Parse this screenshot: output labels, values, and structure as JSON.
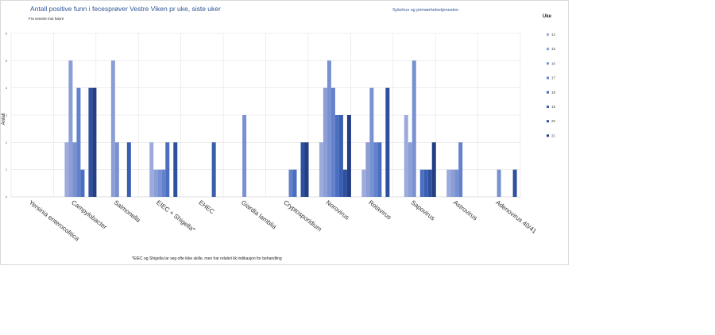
{
  "title": "Antall positive funn i fecesprøver Vestre Viken pr uke, siste uker",
  "subtitle": "Fra venstre mot høyre",
  "org": "Sykehus og primærhelsetjenesten",
  "legend_title": "Uke",
  "footnote": "*EIEC og Shigella lar seg ofte ikke skille, men har relativt lik indikasjon for behandling",
  "colors": [
    "#9dabdc",
    "#8b9ed6",
    "#7891d2",
    "#6482cc",
    "#4a6fc0",
    "#3a5fb0",
    "#2f509e",
    "#243e84"
  ],
  "chart_data": {
    "type": "bar",
    "ylabel": "Antall",
    "ylim": [
      0,
      6
    ],
    "yticks": [
      0,
      1,
      2,
      3,
      4,
      5,
      6
    ],
    "grid": true,
    "legend_placement": "right",
    "categories": [
      "Yersinia enterocolitica",
      "Campylobacter",
      "Salmonella",
      "EIEC + Shigella*",
      "EHEC",
      "Giardia lamblia",
      "Cryptosporidium",
      "Norovirus",
      "Rotavirus",
      "Sapovirus",
      "Astrovirus",
      "Adenovirus 40/41"
    ],
    "series": [
      {
        "name": "14",
        "values": [
          0,
          2,
          0,
          2,
          0,
          0,
          0,
          2,
          1,
          3,
          1,
          0
        ]
      },
      {
        "name": "15",
        "values": [
          0,
          5,
          5,
          1,
          0,
          0,
          0,
          4,
          2,
          2,
          1,
          0
        ]
      },
      {
        "name": "16",
        "values": [
          0,
          2,
          2,
          1,
          0,
          3,
          0,
          5,
          4,
          5,
          1,
          1
        ]
      },
      {
        "name": "17",
        "values": [
          0,
          4,
          0,
          1,
          0,
          0,
          1,
          4,
          2,
          0,
          2,
          0
        ]
      },
      {
        "name": "18",
        "values": [
          0,
          1,
          0,
          2,
          0,
          0,
          1,
          3,
          2,
          1,
          0,
          0
        ]
      },
      {
        "name": "19",
        "values": [
          0,
          0,
          2,
          0,
          2,
          0,
          0,
          3,
          0,
          1,
          0,
          0
        ]
      },
      {
        "name": "20",
        "values": [
          0,
          4,
          0,
          2,
          0,
          0,
          2,
          1,
          4,
          1,
          0,
          1
        ]
      },
      {
        "name": "21",
        "values": [
          0,
          4,
          0,
          0,
          0,
          0,
          2,
          3,
          0,
          2,
          0,
          0
        ]
      }
    ]
  }
}
